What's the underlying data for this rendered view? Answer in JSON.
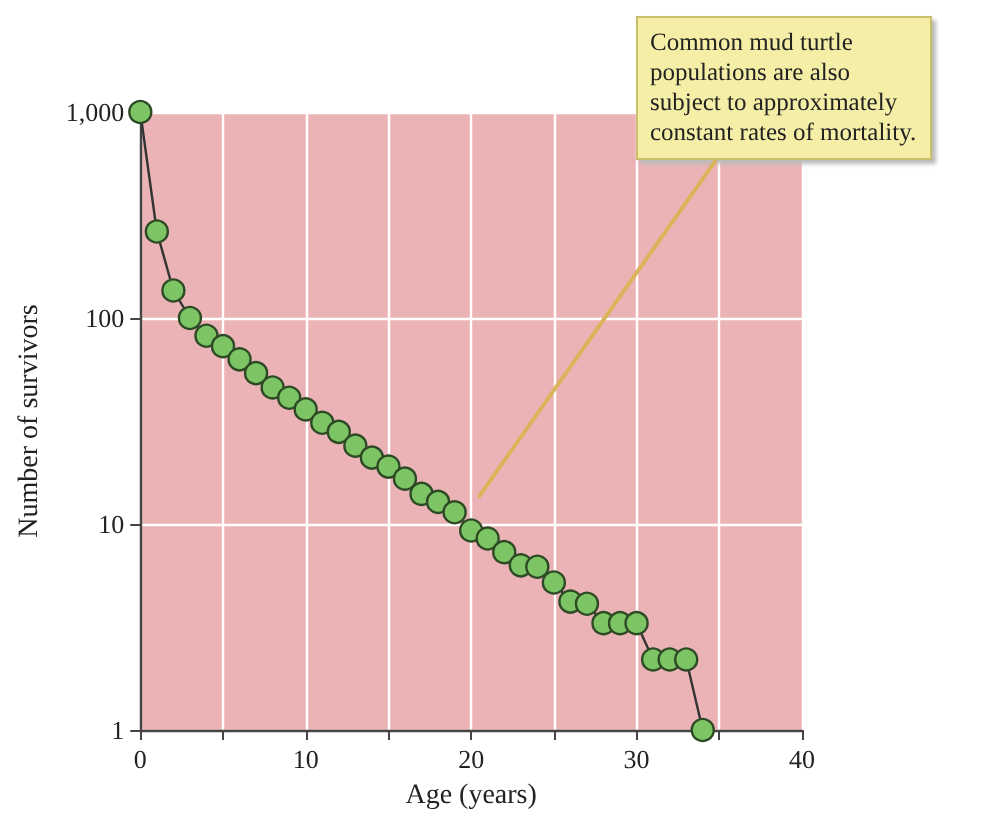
{
  "chart_data": {
    "type": "line",
    "xlabel": "Age (years)",
    "ylabel": "Number of survivors",
    "x": [
      0,
      1,
      2,
      3,
      4,
      5,
      6,
      7,
      8,
      9,
      10,
      11,
      12,
      13,
      14,
      15,
      16,
      17,
      18,
      19,
      20,
      21,
      22,
      23,
      24,
      25,
      26,
      27,
      28,
      29,
      30,
      31,
      32,
      33,
      34
    ],
    "series": [
      {
        "color": "#7cc464",
        "values": [
          1000,
          263,
          136,
          100,
          82,
          73,
          63,
          54,
          46,
          41,
          36,
          31,
          28,
          24,
          21,
          19,
          16.6,
          14,
          12.8,
          11.4,
          9.3,
          8.5,
          7.3,
          6.3,
          6.2,
          5.2,
          4.2,
          4.1,
          3.3,
          3.3,
          3.3,
          2.2,
          2.2,
          2.2,
          1
        ]
      }
    ],
    "log": "y",
    "xlim": [
      0,
      40
    ],
    "ylim": [
      1,
      1000
    ],
    "xticks": [
      0,
      {
        "value": 5,
        "label": null
      },
      10,
      {
        "value": 15,
        "label": null
      },
      20,
      {
        "value": 25,
        "label": null
      },
      30,
      {
        "value": 35,
        "label": null
      },
      40
    ],
    "yticks": [
      1,
      10,
      100,
      {
        "value": 1000,
        "label": "1,000"
      }
    ],
    "grid": true,
    "marker": "circle",
    "line_style": "solid",
    "annotations": [
      "Common mud turtle populations are also subject to approximately constant rates of mortality."
    ]
  }
}
